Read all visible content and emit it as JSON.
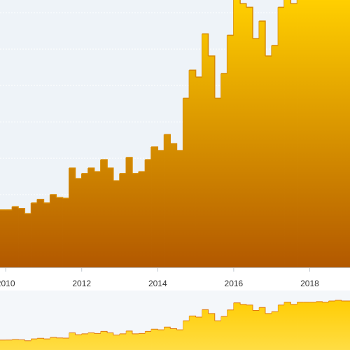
{
  "chart_data": {
    "type": "step-area",
    "x": [
      2009.85,
      2010.0,
      2010.17,
      2010.33,
      2010.5,
      2010.67,
      2010.83,
      2011.0,
      2011.17,
      2011.33,
      2011.5,
      2011.67,
      2011.83,
      2012.0,
      2012.17,
      2012.33,
      2012.5,
      2012.67,
      2012.83,
      2013.0,
      2013.17,
      2013.33,
      2013.5,
      2013.67,
      2013.83,
      2014.0,
      2014.17,
      2014.33,
      2014.5,
      2014.67,
      2014.83,
      2015.0,
      2015.17,
      2015.33,
      2015.5,
      2015.67,
      2015.83,
      2016.0,
      2016.17,
      2016.33,
      2016.5,
      2016.67,
      2016.83,
      2017.0,
      2017.17,
      2017.33,
      2017.5,
      2017.67,
      2017.83,
      2018.0,
      2018.17,
      2018.33,
      2018.5,
      2018.67,
      2018.83
    ],
    "values": [
      1.58,
      1.58,
      1.67,
      1.62,
      1.48,
      1.77,
      1.87,
      1.77,
      2.0,
      1.92,
      1.9,
      2.73,
      2.44,
      2.58,
      2.73,
      2.63,
      2.96,
      2.73,
      2.38,
      2.58,
      3.02,
      2.58,
      2.63,
      2.96,
      3.31,
      3.21,
      3.65,
      3.4,
      3.21,
      4.65,
      5.42,
      5.23,
      6.42,
      5.81,
      4.65,
      5.33,
      6.38,
      7.5,
      7.25,
      7.15,
      6.29,
      6.77,
      5.81,
      6.1,
      7.15,
      7.6,
      7.25,
      7.6,
      7.6,
      7.6,
      7.7,
      7.6,
      7.8,
      7.9,
      7.8
    ],
    "xlim": [
      2009.85,
      2019.06
    ],
    "xticks": [
      2010,
      2012,
      2014,
      2016,
      2018
    ],
    "ylim": [
      0,
      7.35
    ],
    "yticks": [
      1,
      2,
      3,
      4,
      5,
      6,
      7
    ],
    "grid": true,
    "color": "#ffcc00"
  }
}
